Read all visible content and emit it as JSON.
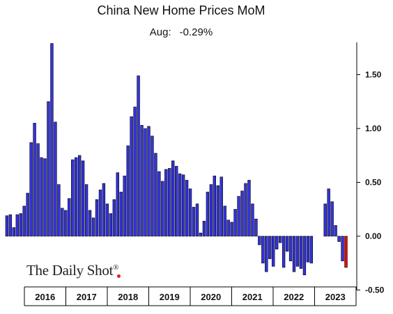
{
  "chart_data": {
    "type": "bar",
    "title": "China New Home Prices MoM",
    "subtitle_label": "Aug:",
    "subtitle_value": "-0.29%",
    "ylim": [
      -0.5,
      1.8
    ],
    "yticks": [
      -0.5,
      0.0,
      0.5,
      1.0,
      1.5
    ],
    "ytick_labels": [
      "-0.50",
      "0.00",
      "0.50",
      "1.00",
      "1.50"
    ],
    "years": [
      "2016",
      "2017",
      "2018",
      "2019",
      "2020",
      "2021",
      "2022",
      "2023"
    ],
    "bar_color": "#3333dd",
    "highlight_color": "#ee0000",
    "values": [
      0.19,
      0.2,
      0.08,
      0.2,
      0.21,
      0.28,
      0.4,
      0.87,
      1.05,
      0.86,
      0.73,
      0.72,
      1.25,
      1.79,
      1.06,
      0.48,
      0.26,
      0.24,
      0.35,
      0.71,
      0.73,
      0.75,
      0.7,
      0.48,
      0.24,
      0.17,
      0.34,
      0.43,
      0.49,
      0.3,
      0.21,
      0.34,
      0.59,
      0.41,
      0.56,
      0.84,
      1.11,
      1.2,
      1.49,
      1.03,
      1.0,
      1.02,
      0.93,
      0.77,
      0.6,
      0.51,
      0.62,
      0.63,
      0.7,
      0.65,
      0.58,
      0.57,
      0.52,
      0.44,
      0.27,
      0.3,
      0.03,
      0.14,
      0.41,
      0.48,
      0.56,
      0.47,
      0.55,
      0.28,
      0.15,
      0.13,
      0.25,
      0.37,
      0.42,
      0.49,
      0.52,
      0.3,
      0.16,
      -0.08,
      -0.25,
      -0.33,
      -0.21,
      -0.28,
      -0.12,
      -0.06,
      -0.29,
      -0.14,
      -0.23,
      -0.33,
      -0.28,
      -0.3,
      -0.36,
      -0.24,
      -0.25,
      0.0,
      0.0,
      0.0,
      0.3,
      0.44,
      0.32,
      0.1,
      -0.05,
      -0.23,
      -0.29
    ],
    "highlight_index": 98,
    "grid": false,
    "legend": "none"
  },
  "watermark": {
    "brand_text": "The Daily Shot",
    "registered_mark": "®"
  }
}
